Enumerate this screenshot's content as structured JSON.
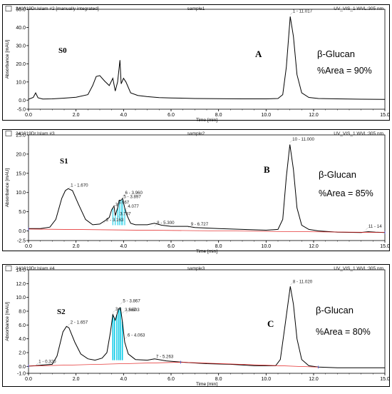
{
  "chart_data": [
    {
      "type": "line",
      "header": {
        "file": "241019Dr.Islam #2 [manually integrated]",
        "sample": "sample1",
        "detector": "UV_VIS_1 WVL:305 nm"
      },
      "ylabel": "Absorbance [mAU]",
      "xlabel": "Time [min]",
      "xlim": [
        0,
        15
      ],
      "ylim": [
        -5,
        50
      ],
      "x_ticks": [
        "0.0",
        "2.0",
        "4.0",
        "6.0",
        "8.0",
        "10.0",
        "12.0",
        "15.0"
      ],
      "y_ticks": [
        "-5.0",
        "0.0",
        "10.0",
        "20.0",
        "30.0",
        "40.0",
        "50.0"
      ],
      "sample_label": "S0",
      "panel_letter": "A",
      "compound": "β-Glucan",
      "area_text": "%Area = 90%",
      "peak_labels": [
        {
          "text": "1 - 11.017",
          "x": 11.017,
          "y": 47
        }
      ],
      "series": [
        {
          "values": [
            [
              0,
              0.5
            ],
            [
              0.2,
              1.5
            ],
            [
              0.3,
              4
            ],
            [
              0.4,
              1.3
            ],
            [
              0.6,
              0.6
            ],
            [
              1.0,
              0.7
            ],
            [
              1.5,
              1.1
            ],
            [
              2.0,
              1.6
            ],
            [
              2.5,
              3
            ],
            [
              2.7,
              8
            ],
            [
              2.85,
              13
            ],
            [
              3.0,
              13.5
            ],
            [
              3.2,
              10.5
            ],
            [
              3.4,
              8
            ],
            [
              3.55,
              12
            ],
            [
              3.65,
              5
            ],
            [
              3.75,
              10
            ],
            [
              3.85,
              22
            ],
            [
              3.9,
              9
            ],
            [
              4.0,
              12
            ],
            [
              4.1,
              10
            ],
            [
              4.3,
              4
            ],
            [
              4.6,
              2.6
            ],
            [
              5.0,
              1.9
            ],
            [
              5.5,
              1.4
            ],
            [
              6.0,
              1.2
            ],
            [
              7.0,
              0.9
            ],
            [
              8.0,
              0.8
            ],
            [
              9.0,
              0.7
            ],
            [
              10.0,
              0.7
            ],
            [
              10.5,
              0.9
            ],
            [
              10.7,
              3
            ],
            [
              10.85,
              18
            ],
            [
              11.017,
              46
            ],
            [
              11.15,
              35
            ],
            [
              11.3,
              14
            ],
            [
              11.5,
              4
            ],
            [
              11.8,
              1.5
            ],
            [
              12.2,
              0.9
            ],
            [
              13,
              0.7
            ],
            [
              14,
              0.5
            ],
            [
              15,
              0.4
            ]
          ]
        }
      ]
    },
    {
      "type": "line",
      "header": {
        "file": "241019Dr.Islam #3",
        "sample": "sample2",
        "detector": "UV_VIS_1 WVL:305 nm"
      },
      "ylabel": "Absorbance [mAU]",
      "xlabel": "Time [min]",
      "xlim": [
        0,
        15
      ],
      "ylim": [
        -2.5,
        25
      ],
      "x_ticks": [
        "0.0",
        "2.0",
        "4.0",
        "6.0",
        "8.0",
        "10.0",
        "12.0",
        "15.0"
      ],
      "y_ticks": [
        "-2.5",
        "0.0",
        "5.0",
        "10.0",
        "15.0",
        "20.0",
        "25.0"
      ],
      "sample_label": "S1",
      "panel_letter": "B",
      "compound": "β-Glucan",
      "area_text": "%Area = 85%",
      "peak_labels": [
        {
          "text": "1 - 1.670",
          "x": 1.67,
          "y": 11
        },
        {
          "text": "2 - 3.163",
          "x": 3.163,
          "y": 2
        },
        {
          "text": "3",
          "x": 3.55,
          "y": 6
        },
        {
          "text": "6 - 3.960",
          "x": 3.96,
          "y": 9
        },
        {
          "text": "5 - 3.897",
          "x": 3.897,
          "y": 8
        },
        {
          "text": "3.667",
          "x": 3.667,
          "y": 6.5
        },
        {
          "text": "4.077",
          "x": 4.077,
          "y": 5.5
        },
        {
          "text": "3.737",
          "x": 3.737,
          "y": 3.5
        },
        {
          "text": "8 - 5.300",
          "x": 5.3,
          "y": 1.2
        },
        {
          "text": "9 - 6.727",
          "x": 6.727,
          "y": 0.8
        },
        {
          "text": "10 - 11.000",
          "x": 11.0,
          "y": 23
        },
        {
          "text": "11 - 14",
          "x": 14.2,
          "y": 0.3
        }
      ],
      "series": [
        {
          "values": [
            [
              0,
              0.6
            ],
            [
              0.5,
              0.6
            ],
            [
              0.9,
              1
            ],
            [
              1.15,
              3
            ],
            [
              1.4,
              8.5
            ],
            [
              1.55,
              10.5
            ],
            [
              1.67,
              11
            ],
            [
              1.85,
              10.5
            ],
            [
              2.1,
              7
            ],
            [
              2.4,
              3
            ],
            [
              2.7,
              1.6
            ],
            [
              3.0,
              1.8
            ],
            [
              3.2,
              2.6
            ],
            [
              3.4,
              3.5
            ],
            [
              3.5,
              5.5
            ],
            [
              3.6,
              6.5
            ],
            [
              3.65,
              4
            ],
            [
              3.75,
              6
            ],
            [
              3.82,
              8
            ],
            [
              3.9,
              8
            ],
            [
              3.96,
              8.5
            ],
            [
              4.05,
              6
            ],
            [
              4.15,
              4
            ],
            [
              4.3,
              2
            ],
            [
              4.5,
              1.6
            ],
            [
              5.0,
              1.6
            ],
            [
              5.3,
              2
            ],
            [
              5.6,
              1.5
            ],
            [
              6.0,
              1.2
            ],
            [
              6.7,
              1.2
            ],
            [
              7.0,
              0.9
            ],
            [
              8.0,
              0.6
            ],
            [
              9.0,
              0.4
            ],
            [
              10.0,
              0.2
            ],
            [
              10.5,
              0.4
            ],
            [
              10.7,
              3
            ],
            [
              10.85,
              14
            ],
            [
              11.0,
              22.5
            ],
            [
              11.15,
              16
            ],
            [
              11.3,
              6
            ],
            [
              11.5,
              1.5
            ],
            [
              11.8,
              0.4
            ],
            [
              12.2,
              0
            ],
            [
              13,
              -0.3
            ],
            [
              14,
              -0.4
            ],
            [
              14.3,
              -0.2
            ],
            [
              14.6,
              -0.3
            ],
            [
              15,
              -0.4
            ]
          ]
        },
        {
          "values": [
            [
              0,
              0.5
            ],
            [
              15,
              -0.4
            ]
          ]
        }
      ]
    },
    {
      "type": "line",
      "header": {
        "file": "241019Dr.Islam #4",
        "sample": "sample3",
        "detector": "UV_VIS_1 WVL:305 nm"
      },
      "ylabel": "Absorbance [mAU]",
      "xlabel": "Time [min]",
      "xlim": [
        0,
        15
      ],
      "ylim": [
        -1.0,
        14.0
      ],
      "x_ticks": [
        "0.0",
        "2.0",
        "4.0",
        "6.0",
        "8.0",
        "10.0",
        "12.0",
        "15.0"
      ],
      "y_ticks": [
        "-1.0",
        "0.0",
        "2.0",
        "4.0",
        "6.0",
        "8.0",
        "10.0",
        "12.0",
        "14.0"
      ],
      "sample_label": "S2",
      "panel_letter": "C",
      "compound": "β-Glucan",
      "area_text": "%Area = 80%",
      "peak_labels": [
        {
          "text": "1 - 0.320",
          "x": 0.32,
          "y": 0.2
        },
        {
          "text": "2 - 1.657",
          "x": 1.657,
          "y": 5.9
        },
        {
          "text": "3",
          "x": 3.55,
          "y": 7.8
        },
        {
          "text": "4",
          "x": 3.68,
          "y": 7.8
        },
        {
          "text": "5 - 3.867",
          "x": 3.867,
          "y": 9
        },
        {
          "text": "3.567",
          "x": 3.95,
          "y": 7.7
        },
        {
          "text": "3.693",
          "x": 4.1,
          "y": 7.7
        },
        {
          "text": "6 - 4.063",
          "x": 4.063,
          "y": 4
        },
        {
          "text": "7 - 5.263",
          "x": 5.263,
          "y": 0.9
        },
        {
          "text": "8 - 11.020",
          "x": 11.02,
          "y": 11.8
        }
      ],
      "series": [
        {
          "values": [
            [
              0,
              0.05
            ],
            [
              0.3,
              0.1
            ],
            [
              0.6,
              0.2
            ],
            [
              1.0,
              0.3
            ],
            [
              1.2,
              1.5
            ],
            [
              1.45,
              5
            ],
            [
              1.6,
              5.8
            ],
            [
              1.7,
              5.6
            ],
            [
              1.95,
              3.5
            ],
            [
              2.2,
              1.8
            ],
            [
              2.5,
              1.1
            ],
            [
              2.8,
              0.9
            ],
            [
              3.1,
              1.2
            ],
            [
              3.3,
              2
            ],
            [
              3.45,
              5
            ],
            [
              3.55,
              7.5
            ],
            [
              3.65,
              6.7
            ],
            [
              3.72,
              7.5
            ],
            [
              3.8,
              8.4
            ],
            [
              3.87,
              8.5
            ],
            [
              3.95,
              6.5
            ],
            [
              4.05,
              3.5
            ],
            [
              4.2,
              1.8
            ],
            [
              4.5,
              1
            ],
            [
              5.0,
              0.9
            ],
            [
              5.3,
              1.1
            ],
            [
              5.8,
              0.8
            ],
            [
              6.5,
              0.6
            ],
            [
              7.5,
              0.4
            ],
            [
              8.5,
              0.3
            ],
            [
              9.5,
              0.1
            ],
            [
              10.4,
              0.1
            ],
            [
              10.6,
              1
            ],
            [
              10.8,
              6
            ],
            [
              11.02,
              11.6
            ],
            [
              11.15,
              9
            ],
            [
              11.3,
              4
            ],
            [
              11.5,
              1
            ],
            [
              11.8,
              0.1
            ],
            [
              12.2,
              -0.1
            ],
            [
              13,
              -0.2
            ],
            [
              14,
              -0.2
            ],
            [
              15,
              -0.2
            ]
          ]
        },
        {
          "values": [
            [
              0,
              0.05
            ],
            [
              6.4,
              0.6
            ],
            [
              12.2,
              -0.1
            ]
          ]
        }
      ]
    }
  ]
}
